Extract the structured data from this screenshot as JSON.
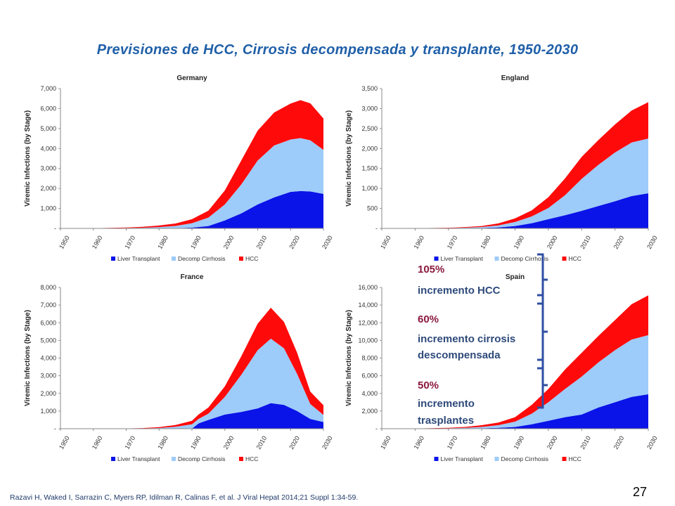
{
  "slide": {
    "title": "Previsiones  de HCC, Cirrosis decompensada  y transplante, 1950-2030",
    "footer": "Razavi H, Waked I, Sarrazin C, Myers RP, Idilman R, Calinas F, et al. J Viral Hepat 2014;21  Suppl 1:34-59.",
    "page_number": "27"
  },
  "annotations": {
    "hcc_pct": "105%",
    "hcc_text": "incremento HCC",
    "cirr_pct": "60%",
    "cirr_text1": "incremento cirrosis",
    "cirr_text2": "descompensada",
    "tx_pct": "50%",
    "tx_text1": "incremento",
    "tx_text2": "trasplantes"
  },
  "colors": {
    "liver_transplant": "#0A14E8",
    "decomp_cirrhosis": "#9DCBFA",
    "hcc": "#FF0A0A",
    "title": "#1F5FA8",
    "bracket": "#2F4FA3"
  },
  "chart_data": [
    {
      "type": "area",
      "stacked": true,
      "title": "Germany",
      "xlabel": "",
      "ylabel": "Viremic Infections (by Stage)",
      "x": [
        1950,
        1960,
        1970,
        1975,
        1980,
        1985,
        1990,
        1995,
        2000,
        2005,
        2010,
        2015,
        2020,
        2023,
        2026,
        2030
      ],
      "xticks": [
        1950,
        1960,
        1970,
        1980,
        1990,
        2000,
        2010,
        2020,
        2030
      ],
      "ylim": [
        0,
        7000
      ],
      "yticks": [
        0,
        1000,
        2000,
        3000,
        4000,
        5000,
        6000,
        7000
      ],
      "ytick_labels": [
        "-",
        "1,000",
        "2,000",
        "3,000",
        "4,000",
        "5,000",
        "6,000",
        "7,000"
      ],
      "legend": "bottom",
      "series": [
        {
          "name": "Liver Transplant",
          "values": [
            0,
            0,
            0,
            0,
            5,
            15,
            40,
            120,
            400,
            750,
            1200,
            1550,
            1830,
            1870,
            1850,
            1730
          ]
        },
        {
          "name": "Decomp Cirrhosis",
          "values": [
            0,
            5,
            20,
            30,
            60,
            110,
            220,
            420,
            800,
            1450,
            2200,
            2600,
            2620,
            2650,
            2560,
            2200
          ]
        },
        {
          "name": "HCC",
          "values": [
            0,
            5,
            25,
            50,
            80,
            120,
            200,
            350,
            700,
            1200,
            1500,
            1650,
            1800,
            1900,
            1850,
            1570
          ]
        }
      ]
    },
    {
      "type": "area",
      "stacked": true,
      "title": "England",
      "xlabel": "",
      "ylabel": "Viremic Infections (by Stage)",
      "x": [
        1950,
        1960,
        1970,
        1975,
        1980,
        1985,
        1990,
        1995,
        2000,
        2005,
        2010,
        2015,
        2020,
        2025,
        2030
      ],
      "xticks": [
        1950,
        1960,
        1970,
        1980,
        1990,
        2000,
        2010,
        2020,
        2030
      ],
      "ylim": [
        0,
        3500
      ],
      "yticks": [
        0,
        500,
        1000,
        1500,
        2000,
        2500,
        3000,
        3500
      ],
      "ytick_labels": [
        "-",
        "500",
        "1,000",
        "1,500",
        "2,000",
        "2,500",
        "3,000",
        "3,500"
      ],
      "legend": "bottom",
      "series": [
        {
          "name": "Liver Transplant",
          "values": [
            0,
            0,
            2,
            5,
            10,
            25,
            60,
            130,
            230,
            330,
            440,
            560,
            680,
            810,
            880
          ]
        },
        {
          "name": "Decomp Cirrhosis",
          "values": [
            0,
            2,
            6,
            12,
            25,
            50,
            100,
            170,
            280,
            500,
            800,
            1030,
            1220,
            1340,
            1370
          ]
        },
        {
          "name": "HCC",
          "values": [
            0,
            2,
            8,
            15,
            25,
            50,
            90,
            150,
            270,
            420,
            550,
            620,
            700,
            800,
            910
          ]
        }
      ]
    },
    {
      "type": "area",
      "stacked": true,
      "title": "France",
      "xlabel": "",
      "ylabel": "Viremic Infections (by Stage)",
      "x": [
        1950,
        1960,
        1970,
        1975,
        1980,
        1985,
        1990,
        1992,
        1995,
        2000,
        2005,
        2010,
        2014,
        2018,
        2022,
        2026,
        2030
      ],
      "xticks": [
        1950,
        1960,
        1970,
        1980,
        1990,
        2000,
        2010,
        2020,
        2030
      ],
      "ylim": [
        0,
        8000
      ],
      "yticks": [
        0,
        1000,
        2000,
        3000,
        4000,
        5000,
        6000,
        7000,
        8000
      ],
      "ytick_labels": [
        "-",
        "1,000",
        "2,000",
        "3,000",
        "4,000",
        "5,000",
        "6,000",
        "7,000",
        "8,000"
      ],
      "legend": "bottom",
      "series": [
        {
          "name": "Liver Transplant",
          "values": [
            0,
            0,
            0,
            0,
            0,
            0,
            0,
            300,
            500,
            800,
            950,
            1150,
            1450,
            1350,
            1000,
            550,
            380
          ]
        },
        {
          "name": "Decomp Cirrhosis",
          "values": [
            0,
            0,
            5,
            15,
            40,
            110,
            250,
            250,
            350,
            1000,
            2100,
            3300,
            3650,
            3200,
            2100,
            850,
            400
          ]
        },
        {
          "name": "HCC",
          "values": [
            0,
            0,
            10,
            20,
            50,
            100,
            200,
            250,
            350,
            600,
            1050,
            1500,
            1750,
            1500,
            1200,
            700,
            550
          ]
        }
      ]
    },
    {
      "type": "area",
      "stacked": true,
      "title": "Spain",
      "xlabel": "",
      "ylabel": "Viremic Infections (by Stage)",
      "x": [
        1950,
        1960,
        1970,
        1975,
        1980,
        1985,
        1990,
        1995,
        2000,
        2005,
        2010,
        2015,
        2020,
        2025,
        2030
      ],
      "xticks": [
        1950,
        1960,
        1970,
        1980,
        1990,
        2000,
        2010,
        2020,
        2030
      ],
      "ylim": [
        0,
        16000
      ],
      "yticks": [
        0,
        2000,
        4000,
        6000,
        8000,
        10000,
        12000,
        14000,
        16000
      ],
      "ytick_labels": [
        "-",
        "2,000",
        "4,000",
        "6,000",
        "8,000",
        "10,000",
        "12,000",
        "14,000",
        "16,000"
      ],
      "legend": "bottom",
      "series": [
        {
          "name": "Liver Transplant",
          "values": [
            0,
            0,
            10,
            20,
            50,
            100,
            200,
            500,
            900,
            1300,
            1600,
            2400,
            3000,
            3600,
            3900
          ]
        },
        {
          "name": "Decomp Cirrhosis",
          "values": [
            0,
            10,
            40,
            80,
            150,
            300,
            600,
            1200,
            2100,
            3200,
            4300,
            5100,
            5900,
            6500,
            6700
          ]
        },
        {
          "name": "HCC",
          "values": [
            0,
            10,
            50,
            100,
            200,
            300,
            500,
            1000,
            1500,
            2200,
            2700,
            3000,
            3400,
            4000,
            4500
          ]
        }
      ]
    }
  ]
}
